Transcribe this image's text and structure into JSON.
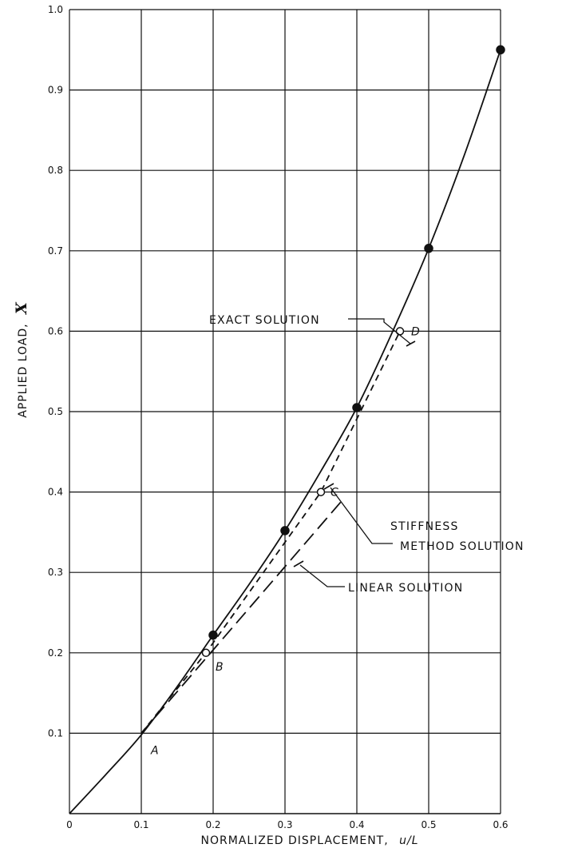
{
  "chart_data": {
    "type": "line",
    "xlabel_main": "NORMALIZED DISPLACEMENT,",
    "xlabel_var": "u/L",
    "ylabel_main": "APPLIED LOAD,",
    "ylabel_var": "X",
    "xlim": [
      0,
      0.6
    ],
    "ylim": [
      0,
      1.0
    ],
    "grid": true,
    "x_ticks": [
      "0",
      "0.1",
      "0.2",
      "0.3",
      "0.4",
      "0.5",
      "0.6"
    ],
    "y_ticks": [
      "0.1",
      "0.2",
      "0.3",
      "0.4",
      "0.5",
      "0.6",
      "0.7",
      "0.8",
      "0.9",
      "1.0"
    ],
    "series": [
      {
        "name": "EXACT SOLUTION",
        "style": "solid",
        "x": [
          0,
          0.05,
          0.1,
          0.15,
          0.2,
          0.25,
          0.3,
          0.35,
          0.4,
          0.45,
          0.5,
          0.55,
          0.6
        ],
        "y": [
          0,
          0.048,
          0.098,
          0.158,
          0.222,
          0.285,
          0.352,
          0.426,
          0.505,
          0.6,
          0.703,
          0.82,
          0.95
        ],
        "markers": {
          "x": [
            0.2,
            0.3,
            0.4,
            0.5,
            0.6
          ],
          "y": [
            0.222,
            0.352,
            0.505,
            0.703,
            0.95
          ],
          "style": "filled"
        }
      },
      {
        "name": "STIFFNESS METHOD SOLUTION",
        "style": "short-dash",
        "x": [
          0.1,
          0.19,
          0.35,
          0.46
        ],
        "y": [
          0.1,
          0.2,
          0.4,
          0.6
        ],
        "markers": {
          "x": [
            0.19,
            0.35,
            0.46
          ],
          "y": [
            0.2,
            0.4,
            0.6
          ],
          "style": "open"
        }
      },
      {
        "name": "LINEAR SOLUTION",
        "style": "long-dash",
        "x": [
          0.1,
          0.38
        ],
        "y": [
          0.1,
          0.39
        ]
      }
    ],
    "point_labels": [
      {
        "text": "A",
        "x": 0.1,
        "y": 0.1
      },
      {
        "text": "B",
        "x": 0.19,
        "y": 0.2
      },
      {
        "text": "C",
        "x": 0.35,
        "y": 0.4
      },
      {
        "text": "D",
        "x": 0.46,
        "y": 0.6
      }
    ],
    "annotations": {
      "exact": "EXACT SOLUTION",
      "stiffness_line1": "STIFFNESS",
      "stiffness_line2": "METHOD SOLUTION",
      "linear": "LINEAR SOLUTION"
    }
  }
}
